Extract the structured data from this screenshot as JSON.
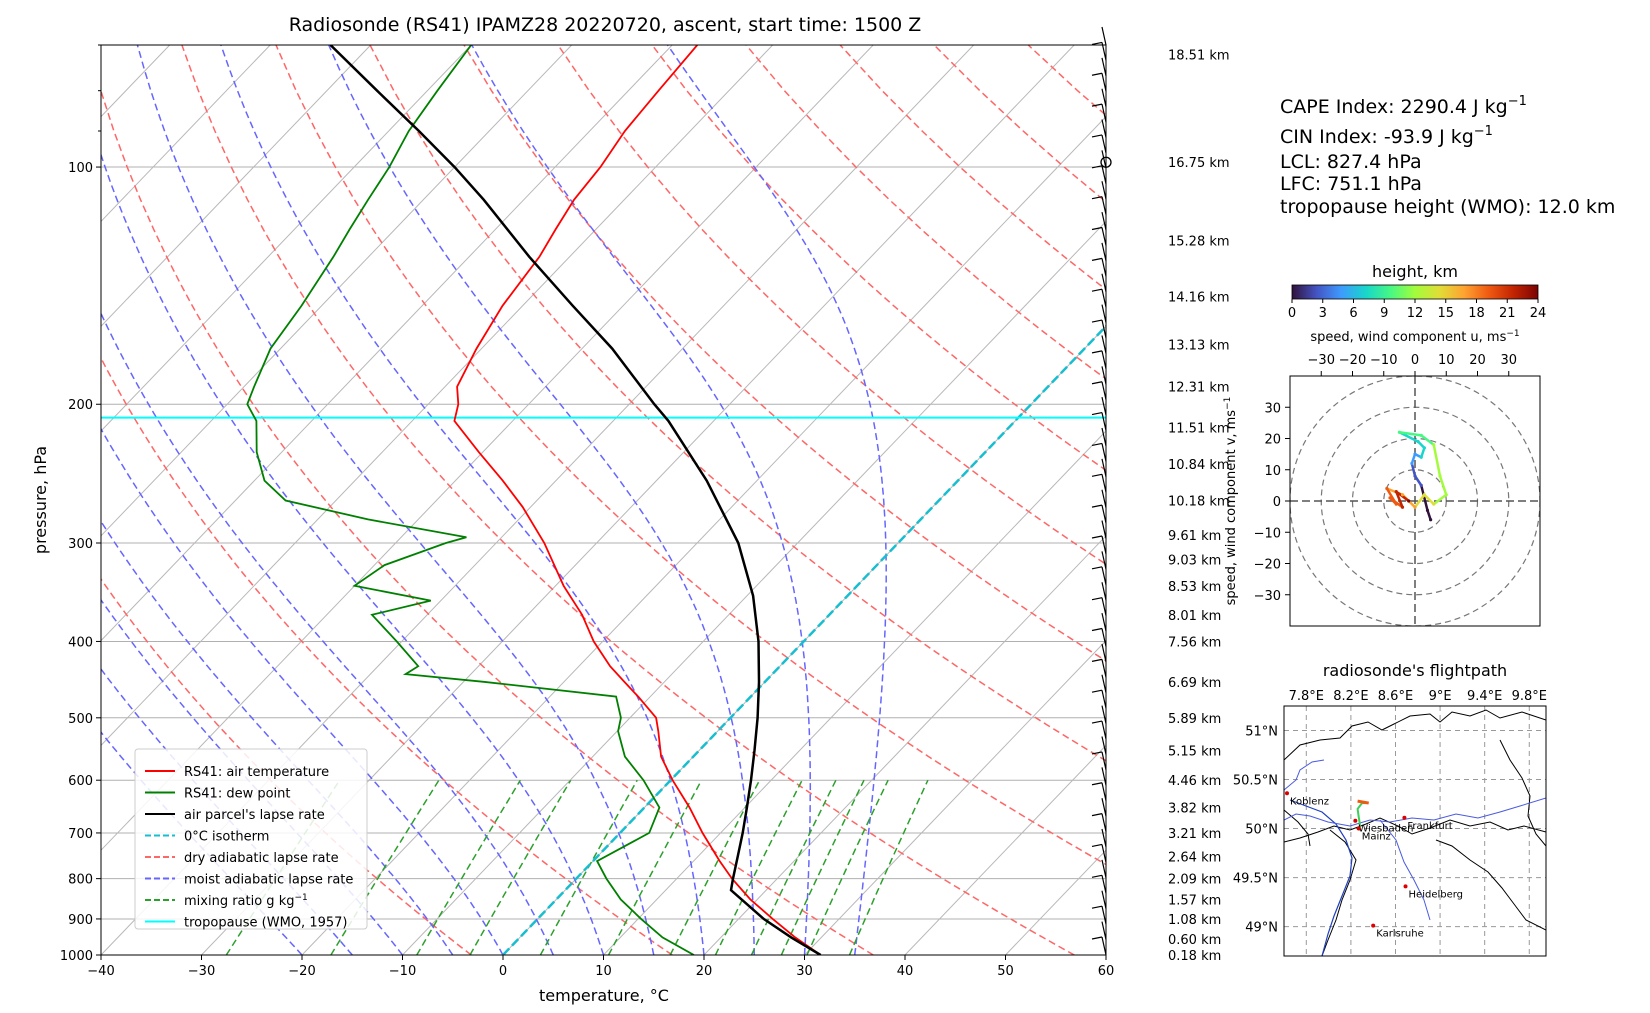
{
  "figure": {
    "title": "Radiosonde (RS41) IPAMZ28 20220720, ascent, start time: 1500 Z"
  },
  "indices": {
    "cape": "CAPE Index: 2290.4 J kg",
    "cape_exp": "−1",
    "cin": "CIN Index: -93.9 J kg",
    "cin_exp": "−1",
    "lcl": "LCL: 827.4 hPa",
    "lfc": "LFC: 751.1 hPa",
    "tropopause": "tropopause height (WMO): 12.0 km"
  },
  "chart_data": [
    {
      "type": "line",
      "subtype": "skew-T log-p diagram",
      "title": "",
      "xlabel": "temperature, °C",
      "ylabel": "pressure, hPa",
      "xlim": [
        -40,
        60
      ],
      "ylim": [
        1000,
        70
      ],
      "y_scale": "log",
      "x_ticks": [
        "−40",
        "−30",
        "−20",
        "−10",
        "0",
        "10",
        "20",
        "30",
        "40",
        "50",
        "60"
      ],
      "y_ticks": [
        "100",
        "200",
        "300",
        "400",
        "500",
        "600",
        "700",
        "800",
        "900",
        "1000"
      ],
      "grid": true,
      "legend_position": "lower-left",
      "legend": [
        {
          "label": "RS41: air temperature",
          "color": "#ff0000",
          "style": "solid"
        },
        {
          "label": "RS41: dew point",
          "color": "#008000",
          "style": "solid"
        },
        {
          "label": "air parcel's lapse rate",
          "color": "#000000",
          "style": "solid"
        },
        {
          "label": "0°C isotherm",
          "color": "#17becf",
          "style": "dashed"
        },
        {
          "label": "dry adiabatic lapse rate",
          "color": "#ff6666",
          "style": "dashed"
        },
        {
          "label": "moist adiabatic lapse rate",
          "color": "#6666ff",
          "style": "dashed"
        },
        {
          "label": "mixing ratio g kg",
          "label_exp": "−1",
          "color": "#2ca02c",
          "style": "dashed"
        },
        {
          "label": "tropopause (WMO, 1957)",
          "color": "#00ffff",
          "style": "solid"
        }
      ],
      "series": [
        {
          "name": "RS41: air temperature",
          "p": [
            1000,
            950,
            900,
            850,
            800,
            760,
            700,
            650,
            600,
            560,
            520,
            500,
            470,
            450,
            430,
            400,
            370,
            340,
            300,
            270,
            250,
            230,
            210,
            200,
            190,
            170,
            150,
            130,
            120,
            110,
            100,
            90,
            80,
            70
          ],
          "t": [
            31.6,
            27.4,
            23.4,
            19.3,
            15.5,
            12.6,
            8.2,
            4.5,
            0.2,
            -3.2,
            -5.9,
            -7.4,
            -11.2,
            -14.0,
            -16.9,
            -20.9,
            -24.6,
            -29.2,
            -35.2,
            -40.8,
            -45.3,
            -50.4,
            -55.8,
            -57.0,
            -58.8,
            -60.5,
            -62.0,
            -63.0,
            -64.0,
            -65.0,
            -65.5,
            -66.5,
            -67.0,
            -67.5
          ]
        },
        {
          "name": "RS41: dew point",
          "p": [
            1000,
            950,
            900,
            850,
            800,
            760,
            700,
            650,
            600,
            560,
            520,
            500,
            470,
            450,
            440,
            430,
            400,
            370,
            355,
            340,
            320,
            300,
            295,
            280,
            265,
            250,
            230,
            210,
            200,
            190,
            170,
            150,
            130,
            120,
            110,
            100,
            90,
            80,
            70
          ],
          "t": [
            19.0,
            14.2,
            10.3,
            6.4,
            3.0,
            0.4,
            2.9,
            1.5,
            -2.7,
            -6.8,
            -9.9,
            -10.9,
            -13.4,
            -28.0,
            -36.5,
            -36.0,
            -40.5,
            -45.5,
            -41.0,
            -50.0,
            -49.0,
            -45.0,
            -43.5,
            -55.0,
            -65.0,
            -69.0,
            -72.5,
            -75.5,
            -78.0,
            -79.0,
            -81.0,
            -82.0,
            -83.5,
            -84.5,
            -85.5,
            -86.5,
            -88.0,
            -89.0,
            -90.0
          ]
        },
        {
          "name": "air parcel's lapse rate",
          "p": [
            1000,
            950,
            900,
            827.4,
            800,
            751.1,
            700,
            650,
            600,
            550,
            500,
            450,
            400,
            350,
            300,
            250,
            210,
            200,
            170,
            150,
            130,
            110,
            100,
            90,
            80,
            70
          ],
          "t": [
            31.6,
            27.0,
            22.5,
            16.5,
            15.6,
            14.0,
            12.2,
            10.2,
            8.0,
            5.5,
            2.7,
            -0.6,
            -4.5,
            -9.4,
            -15.9,
            -25.0,
            -34.5,
            -37.5,
            -47.0,
            -55.0,
            -64.0,
            -74.0,
            -80.0,
            -87.0,
            -95.0,
            -104.0
          ]
        }
      ],
      "isotherm_0c": {
        "label": "0°C isotherm",
        "value_c": 0
      },
      "tropopause_wmo": {
        "label": "tropopause (WMO, 1957)",
        "pressure_hpa": 208,
        "height_km": 12.0
      },
      "dry_adiabats_theta_k": [
        270,
        290,
        310,
        330,
        350,
        370,
        390,
        410,
        430,
        450,
        470,
        490,
        510
      ],
      "moist_adiabats_c": [
        -20,
        -15,
        -10,
        -5,
        0,
        5,
        10,
        15,
        20,
        25,
        30,
        35
      ],
      "mixing_ratio_g_per_kg": [
        0.4,
        1,
        2,
        3,
        5,
        8,
        12,
        16,
        20,
        24,
        28,
        36
      ],
      "height_labels": [
        {
          "p": 1000,
          "text": "0.18 km"
        },
        {
          "p": 955,
          "text": "0.60 km"
        },
        {
          "p": 900,
          "text": "1.08 km"
        },
        {
          "p": 850,
          "text": "1.57 km"
        },
        {
          "p": 800,
          "text": "2.09 km"
        },
        {
          "p": 750,
          "text": "2.64 km"
        },
        {
          "p": 700,
          "text": "3.21 km"
        },
        {
          "p": 650,
          "text": "3.82 km"
        },
        {
          "p": 600,
          "text": "4.46 km"
        },
        {
          "p": 550,
          "text": "5.15 km"
        },
        {
          "p": 500,
          "text": "5.89 km"
        },
        {
          "p": 450,
          "text": "6.69 km"
        },
        {
          "p": 400,
          "text": "7.56 km"
        },
        {
          "p": 370,
          "text": "8.01 km"
        },
        {
          "p": 340,
          "text": "8.53 km"
        },
        {
          "p": 315,
          "text": "9.03 km"
        },
        {
          "p": 293,
          "text": "9.61 km"
        },
        {
          "p": 265,
          "text": "10.18 km"
        },
        {
          "p": 238,
          "text": "10.84 km"
        },
        {
          "p": 214,
          "text": "11.51 km"
        },
        {
          "p": 190,
          "text": "12.31 km"
        },
        {
          "p": 168,
          "text": "13.13 km"
        },
        {
          "p": 146,
          "text": "14.16 km"
        },
        {
          "p": 124,
          "text": "15.28 km"
        },
        {
          "p": 98.6,
          "text": "16.75 km"
        },
        {
          "p": 72,
          "text": "18.51 km"
        }
      ]
    },
    {
      "type": "scatter",
      "subtype": "hodograph",
      "title": "height, km",
      "colorbar_ticks": [
        "0",
        "3",
        "6",
        "9",
        "12",
        "15",
        "18",
        "21",
        "24"
      ],
      "xlabel": "speed, wind component u, ms",
      "xlabel_exp": "−1",
      "ylabel": "speed, wind component v, ms",
      "ylabel_exp": "−1",
      "xlim": [
        -40,
        40
      ],
      "ylim": [
        -40,
        40
      ],
      "x_ticks": [
        "−30",
        "−20",
        "−10",
        "0",
        "10",
        "20",
        "30"
      ],
      "y_ticks": [
        "−30",
        "−20",
        "−10",
        "0",
        "10",
        "20",
        "30"
      ],
      "rings_ms": [
        10,
        20,
        30,
        40
      ],
      "points": [
        {
          "h": 0,
          "u": 5,
          "v": -6
        },
        {
          "h": 1,
          "u": 4,
          "v": -3
        },
        {
          "h": 2,
          "u": 2,
          "v": 5
        },
        {
          "h": 3,
          "u": 0,
          "v": 8
        },
        {
          "h": 4,
          "u": -1,
          "v": 12
        },
        {
          "h": 5,
          "u": 0,
          "v": 15
        },
        {
          "h": 6,
          "u": 2,
          "v": 14
        },
        {
          "h": 7,
          "u": 3,
          "v": 17
        },
        {
          "h": 8,
          "u": 1,
          "v": 19
        },
        {
          "h": 9,
          "u": -5,
          "v": 22
        },
        {
          "h": 10,
          "u": 2,
          "v": 21
        },
        {
          "h": 11,
          "u": 6,
          "v": 18
        },
        {
          "h": 12,
          "u": 8,
          "v": 8
        },
        {
          "h": 13,
          "u": 10,
          "v": 2
        },
        {
          "h": 14,
          "u": 6,
          "v": -1
        },
        {
          "h": 15,
          "u": 3,
          "v": 2
        },
        {
          "h": 16,
          "u": 0,
          "v": -2
        },
        {
          "h": 17,
          "u": -4,
          "v": 2
        },
        {
          "h": 18,
          "u": -9,
          "v": 4
        },
        {
          "h": 19,
          "u": -6,
          "v": -1
        },
        {
          "h": 20,
          "u": -8,
          "v": 1
        },
        {
          "h": 21,
          "u": -4,
          "v": -2
        },
        {
          "h": 22,
          "u": -6,
          "v": 3
        },
        {
          "h": 23,
          "u": -2,
          "v": 0
        }
      ]
    },
    {
      "type": "scatter",
      "subtype": "map",
      "title": "radiosonde's flightpath",
      "lon_ticks": [
        "7.8°E",
        "8.2°E",
        "8.6°E",
        "9°E",
        "9.4°E",
        "9.8°E"
      ],
      "lat_ticks": [
        "51°N",
        "50.5°N",
        "50°N",
        "49.5°N",
        "49°N"
      ],
      "lon_range": [
        7.6,
        9.95
      ],
      "lat_range": [
        48.7,
        51.25
      ],
      "cities": [
        {
          "name": "Koblenz",
          "lon": 7.6,
          "lat": 50.36
        },
        {
          "name": "Wiesbaden",
          "lon": 8.24,
          "lat": 50.08
        },
        {
          "name": "Mainz",
          "lon": 8.27,
          "lat": 50.0
        },
        {
          "name": "Frankfurt",
          "lon": 8.68,
          "lat": 50.11
        },
        {
          "name": "Heidelberg",
          "lon": 8.69,
          "lat": 49.41
        },
        {
          "name": "Karlsruhe",
          "lon": 8.4,
          "lat": 49.01
        }
      ],
      "flightpath": [
        {
          "lon": 8.28,
          "lat": 49.98
        },
        {
          "lon": 8.28,
          "lat": 50.05
        },
        {
          "lon": 8.27,
          "lat": 50.12
        },
        {
          "lon": 8.26,
          "lat": 50.2
        },
        {
          "lon": 8.3,
          "lat": 50.26
        },
        {
          "lon": 8.34,
          "lat": 50.26
        }
      ]
    }
  ]
}
